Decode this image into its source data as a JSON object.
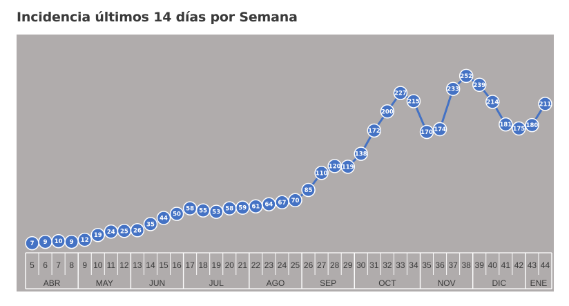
{
  "title": "Incidencia últimos 14 días por Semana",
  "colors": {
    "line": "#4472c4",
    "plot_bg": "#b0acac",
    "axis": "#ffffff",
    "text": "#3a3a3a"
  },
  "chart_data": {
    "type": "line",
    "title": "Incidencia últimos 14 días por Semana",
    "xlabel": "",
    "ylabel": "",
    "grid": false,
    "legend": "none",
    "categories": [
      "5",
      "6",
      "7",
      "8",
      "9",
      "10",
      "11",
      "12",
      "13",
      "14",
      "15",
      "16",
      "17",
      "18",
      "19",
      "20",
      "21",
      "22",
      "23",
      "24",
      "25",
      "26",
      "27",
      "28",
      "29",
      "30",
      "31",
      "32",
      "33",
      "34",
      "35",
      "36",
      "37",
      "38",
      "39",
      "40",
      "41",
      "42",
      "43",
      "44"
    ],
    "values": [
      7,
      9,
      10,
      9,
      12,
      19,
      24,
      25,
      26,
      35,
      44,
      50,
      58,
      55,
      53,
      58,
      59,
      61,
      64,
      67,
      70,
      85,
      110,
      120,
      119,
      138,
      172,
      200,
      227,
      215,
      170,
      174,
      233,
      252,
      239,
      214,
      181,
      175,
      180,
      211
    ],
    "ylim": [
      0,
      260
    ],
    "month_groups": [
      {
        "label": "ABR",
        "count": 4
      },
      {
        "label": "MAY",
        "count": 4
      },
      {
        "label": "JUN",
        "count": 4
      },
      {
        "label": "JUL",
        "count": 5
      },
      {
        "label": "AGO",
        "count": 4
      },
      {
        "label": "SEP",
        "count": 4
      },
      {
        "label": "OCT",
        "count": 5
      },
      {
        "label": "NOV",
        "count": 4
      },
      {
        "label": "DIC",
        "count": 4
      },
      {
        "label": "ENE",
        "count": 2
      }
    ]
  }
}
